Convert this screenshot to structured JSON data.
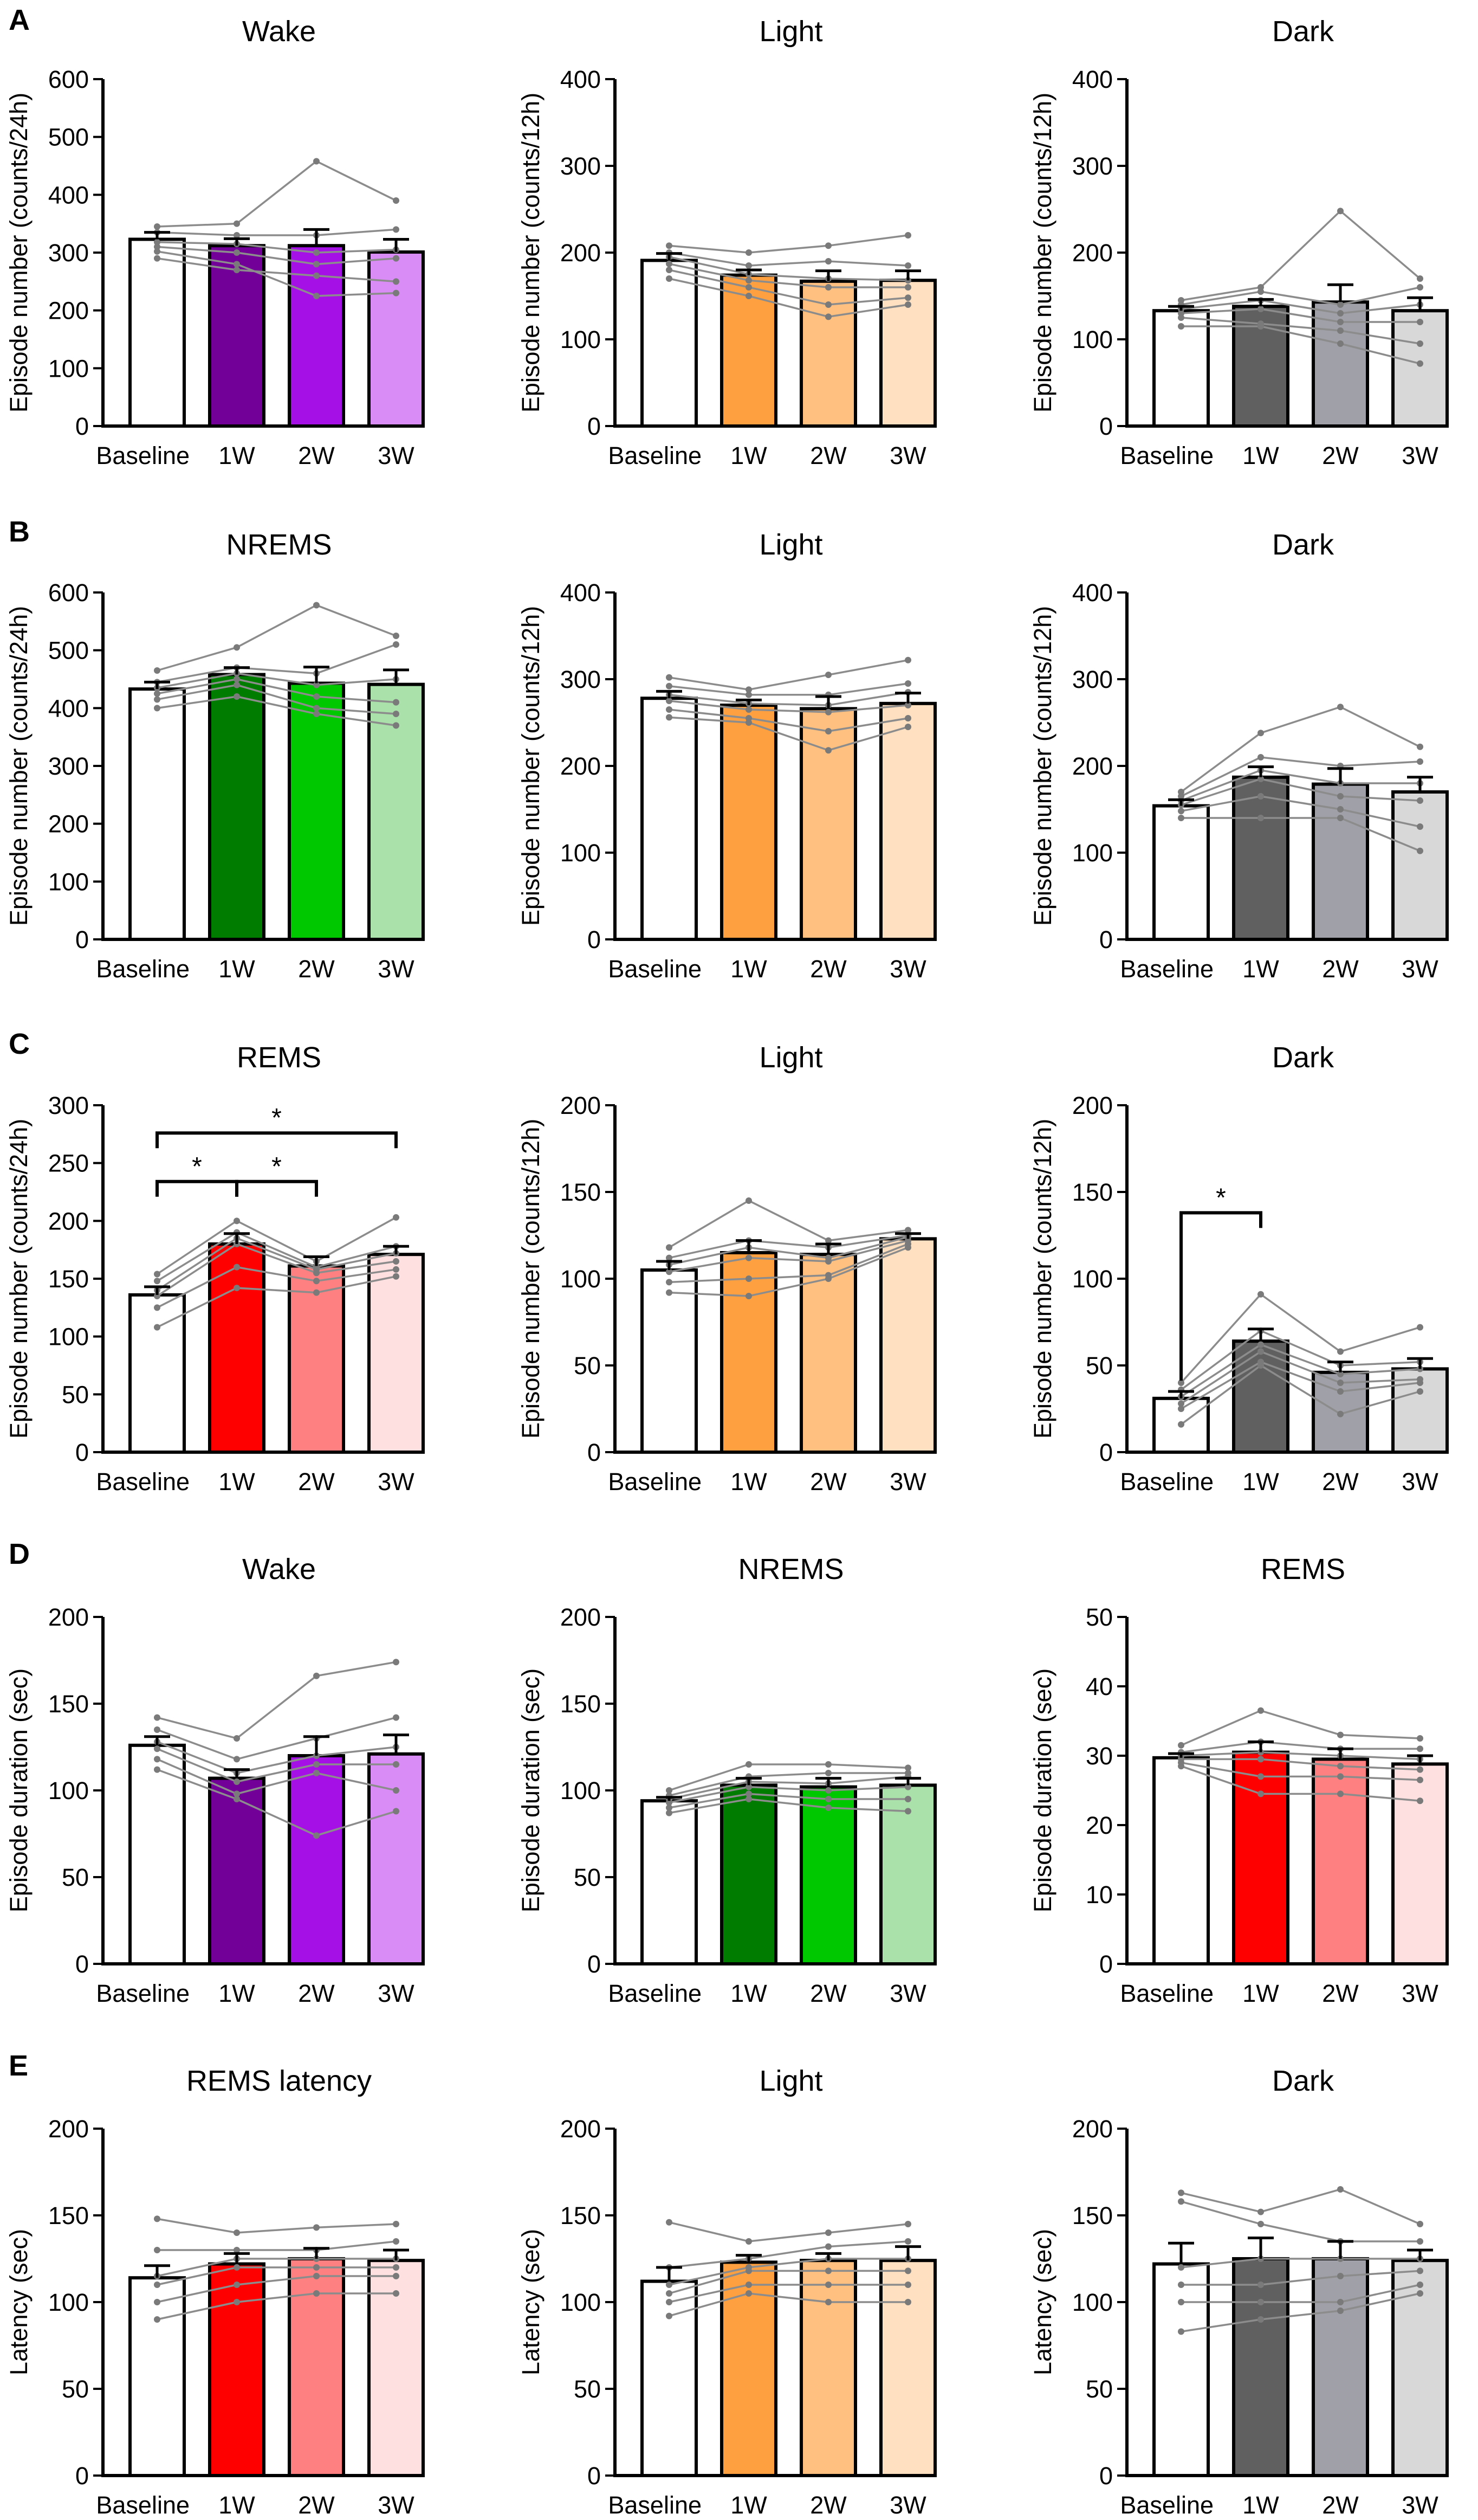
{
  "figure": {
    "rows": [
      {
        "label": "A",
        "panels": [
          0,
          1,
          2
        ]
      },
      {
        "label": "B",
        "panels": [
          3,
          4,
          5
        ]
      },
      {
        "label": "C",
        "panels": [
          6,
          7,
          8
        ]
      },
      {
        "label": "D",
        "panels": [
          9,
          10,
          11
        ]
      },
      {
        "label": "E",
        "panels": [
          12,
          13,
          14
        ]
      }
    ]
  },
  "chart_data": [
    {
      "type": "bar",
      "title": "Wake",
      "ylabel": "Episode number (counts/24h)",
      "xlabel": "",
      "categories": [
        "Baseline",
        "1W",
        "2W",
        "3W"
      ],
      "ylim": [
        0,
        600
      ],
      "yticks": [
        0,
        100,
        200,
        300,
        400,
        500,
        600
      ],
      "values": [
        323,
        312,
        312,
        301
      ],
      "errors": [
        12,
        12,
        28,
        22
      ],
      "colors": [
        "#ffffff",
        "#720098",
        "#a510e6",
        "#d98cf5"
      ],
      "individual": [
        [
          345,
          335,
          318,
          310,
          290,
          302
        ],
        [
          350,
          330,
          315,
          300,
          270,
          280
        ],
        [
          458,
          330,
          300,
          280,
          260,
          225
        ],
        [
          390,
          340,
          305,
          290,
          250,
          230
        ]
      ],
      "significance": []
    },
    {
      "type": "bar",
      "title": "Light",
      "ylabel": "Episode number (counts/12h)",
      "xlabel": "",
      "categories": [
        "Baseline",
        "1W",
        "2W",
        "3W"
      ],
      "ylim": [
        0,
        400
      ],
      "yticks": [
        0,
        100,
        200,
        300,
        400
      ],
      "values": [
        191,
        174,
        167,
        168
      ],
      "errors": [
        8,
        6,
        12,
        11
      ],
      "colors": [
        "#ffffff",
        "#ffa040",
        "#ffc080",
        "#ffe0c0"
      ],
      "individual": [
        [
          208,
          200,
          195,
          187,
          180,
          170
        ],
        [
          200,
          185,
          175,
          168,
          160,
          150
        ],
        [
          208,
          190,
          170,
          160,
          140,
          126
        ],
        [
          220,
          185,
          168,
          160,
          148,
          140
        ]
      ],
      "significance": []
    },
    {
      "type": "bar",
      "title": "Dark",
      "ylabel": "Episode number (counts/12h)",
      "xlabel": "",
      "categories": [
        "Baseline",
        "1W",
        "2W",
        "3W"
      ],
      "ylim": [
        0,
        400
      ],
      "yticks": [
        0,
        100,
        200,
        300,
        400
      ],
      "values": [
        133,
        138,
        143,
        133
      ],
      "errors": [
        5,
        8,
        20,
        15
      ],
      "colors": [
        "#ffffff",
        "#606060",
        "#a0a0a8",
        "#d8d8d8"
      ],
      "individual": [
        [
          145,
          140,
          135,
          130,
          125,
          115
        ],
        [
          160,
          155,
          145,
          135,
          118,
          115
        ],
        [
          248,
          140,
          130,
          120,
          110,
          95
        ],
        [
          170,
          160,
          140,
          120,
          95,
          72
        ]
      ],
      "significance": []
    },
    {
      "type": "bar",
      "title": "NREMS",
      "ylabel": "Episode number (counts/24h)",
      "xlabel": "",
      "categories": [
        "Baseline",
        "1W",
        "2W",
        "3W"
      ],
      "ylim": [
        0,
        600
      ],
      "yticks": [
        0,
        100,
        200,
        300,
        400,
        500,
        600
      ],
      "values": [
        433,
        458,
        443,
        441
      ],
      "errors": [
        12,
        12,
        28,
        25
      ],
      "colors": [
        "#ffffff",
        "#007d00",
        "#00c800",
        "#aae0aa"
      ],
      "individual": [
        [
          465,
          445,
          435,
          425,
          415,
          400
        ],
        [
          505,
          470,
          460,
          450,
          440,
          420
        ],
        [
          578,
          460,
          440,
          420,
          400,
          390
        ],
        [
          525,
          510,
          450,
          410,
          390,
          370
        ]
      ],
      "significance": []
    },
    {
      "type": "bar",
      "title": "Light",
      "ylabel": "Episode number (counts/12h)",
      "xlabel": "",
      "categories": [
        "Baseline",
        "1W",
        "2W",
        "3W"
      ],
      "ylim": [
        0,
        400
      ],
      "yticks": [
        0,
        100,
        200,
        300,
        400
      ],
      "values": [
        278,
        270,
        266,
        272
      ],
      "errors": [
        8,
        6,
        14,
        12
      ],
      "colors": [
        "#ffffff",
        "#ffa040",
        "#ffc080",
        "#ffe0c0"
      ],
      "individual": [
        [
          302,
          292,
          282,
          275,
          265,
          256
        ],
        [
          288,
          282,
          272,
          265,
          255,
          250
        ],
        [
          305,
          282,
          270,
          262,
          240,
          218
        ],
        [
          322,
          295,
          285,
          270,
          255,
          245
        ]
      ],
      "significance": []
    },
    {
      "type": "bar",
      "title": "Dark",
      "ylabel": "Episode number (counts/12h)",
      "xlabel": "",
      "categories": [
        "Baseline",
        "1W",
        "2W",
        "3W"
      ],
      "ylim": [
        0,
        400
      ],
      "yticks": [
        0,
        100,
        200,
        300,
        400
      ],
      "values": [
        154,
        187,
        179,
        170
      ],
      "errors": [
        7,
        12,
        18,
        17
      ],
      "colors": [
        "#ffffff",
        "#606060",
        "#a0a0a8",
        "#d8d8d8"
      ],
      "individual": [
        [
          170,
          165,
          160,
          155,
          148,
          140
        ],
        [
          238,
          210,
          195,
          185,
          165,
          140
        ],
        [
          268,
          200,
          180,
          165,
          150,
          140
        ],
        [
          222,
          205,
          180,
          160,
          130,
          102
        ]
      ],
      "significance": []
    },
    {
      "type": "bar",
      "title": "REMS",
      "ylabel": "Episode number (counts/24h)",
      "xlabel": "",
      "categories": [
        "Baseline",
        "1W",
        "2W",
        "3W"
      ],
      "ylim": [
        0,
        300
      ],
      "yticks": [
        0,
        50,
        100,
        150,
        200,
        250,
        300
      ],
      "values": [
        136,
        180,
        161,
        171
      ],
      "errors": [
        7,
        9,
        8,
        7
      ],
      "colors": [
        "#ffffff",
        "#ff0000",
        "#ff8080",
        "#ffe0e0"
      ],
      "individual": [
        [
          154,
          148,
          140,
          135,
          125,
          108
        ],
        [
          200,
          190,
          185,
          180,
          160,
          142
        ],
        [
          165,
          160,
          158,
          155,
          148,
          138
        ],
        [
          203,
          178,
          172,
          165,
          158,
          152
        ]
      ],
      "significance": [
        {
          "from": 0,
          "to": 1,
          "level": 1,
          "label": "*"
        },
        {
          "from": 1,
          "to": 2,
          "level": 1,
          "label": "*"
        },
        {
          "from": 0,
          "to": 3,
          "level": 2,
          "label": "*"
        }
      ]
    },
    {
      "type": "bar",
      "title": "Light",
      "ylabel": "Episode number (counts/12h)",
      "xlabel": "",
      "categories": [
        "Baseline",
        "1W",
        "2W",
        "3W"
      ],
      "ylim": [
        0,
        200
      ],
      "yticks": [
        0,
        50,
        100,
        150,
        200
      ],
      "values": [
        105,
        115,
        114,
        123
      ],
      "errors": [
        5,
        7,
        6,
        3
      ],
      "colors": [
        "#ffffff",
        "#ffa040",
        "#ffc080",
        "#ffe0c0"
      ],
      "individual": [
        [
          118,
          112,
          108,
          104,
          98,
          92
        ],
        [
          145,
          122,
          118,
          112,
          100,
          90
        ],
        [
          122,
          118,
          112,
          110,
          102,
          100
        ],
        [
          128,
          125,
          124,
          122,
          120,
          118
        ]
      ],
      "significance": []
    },
    {
      "type": "bar",
      "title": "Dark",
      "ylabel": "Episode number (counts/12h)",
      "xlabel": "",
      "categories": [
        "Baseline",
        "1W",
        "2W",
        "3W"
      ],
      "ylim": [
        0,
        200
      ],
      "yticks": [
        0,
        50,
        100,
        150,
        200
      ],
      "values": [
        31,
        64,
        46,
        48
      ],
      "errors": [
        4,
        7,
        6,
        6
      ],
      "colors": [
        "#ffffff",
        "#606060",
        "#a0a0a8",
        "#d8d8d8"
      ],
      "individual": [
        [
          40,
          36,
          32,
          28,
          25,
          16
        ],
        [
          91,
          70,
          62,
          58,
          52,
          50
        ],
        [
          58,
          50,
          45,
          40,
          35,
          22
        ],
        [
          72,
          52,
          48,
          42,
          40,
          35
        ]
      ],
      "significance": [
        {
          "from": 0,
          "to": 1,
          "level": 1,
          "label": "*"
        }
      ]
    },
    {
      "type": "bar",
      "title": "Wake",
      "ylabel": "Episode duration (sec)",
      "xlabel": "",
      "categories": [
        "Baseline",
        "1W",
        "2W",
        "3W"
      ],
      "ylim": [
        0,
        200
      ],
      "yticks": [
        0,
        50,
        100,
        150,
        200
      ],
      "values": [
        126,
        107,
        120,
        121
      ],
      "errors": [
        5,
        5,
        11,
        11
      ],
      "colors": [
        "#ffffff",
        "#720098",
        "#a510e6",
        "#d98cf5"
      ],
      "individual": [
        [
          142,
          135,
          128,
          124,
          118,
          112
        ],
        [
          130,
          118,
          110,
          105,
          98,
          95
        ],
        [
          166,
          130,
          120,
          115,
          110,
          74
        ],
        [
          174,
          142,
          125,
          115,
          100,
          88
        ]
      ],
      "significance": []
    },
    {
      "type": "bar",
      "title": "NREMS",
      "ylabel": "Episode duration (sec)",
      "xlabel": "",
      "categories": [
        "Baseline",
        "1W",
        "2W",
        "3W"
      ],
      "ylim": [
        0,
        200
      ],
      "yticks": [
        0,
        50,
        100,
        150,
        200
      ],
      "values": [
        94,
        103,
        102,
        103
      ],
      "errors": [
        2,
        4,
        5,
        4
      ],
      "colors": [
        "#ffffff",
        "#007d00",
        "#00c800",
        "#aae0aa"
      ],
      "individual": [
        [
          100,
          97,
          95,
          93,
          90,
          87
        ],
        [
          115,
          108,
          105,
          102,
          98,
          95
        ],
        [
          115,
          110,
          104,
          100,
          95,
          90
        ],
        [
          113,
          110,
          108,
          102,
          95,
          88
        ]
      ],
      "significance": []
    },
    {
      "type": "bar",
      "title": "REMS",
      "ylabel": "Episode duration (sec)",
      "xlabel": "",
      "categories": [
        "Baseline",
        "1W",
        "2W",
        "3W"
      ],
      "ylim": [
        0,
        50
      ],
      "yticks": [
        0,
        10,
        20,
        30,
        40,
        50
      ],
      "values": [
        29.7,
        30.5,
        29.5,
        28.8
      ],
      "errors": [
        0.6,
        1.5,
        1.5,
        1.2
      ],
      "colors": [
        "#ffffff",
        "#ff0000",
        "#ff8080",
        "#ffe0e0"
      ],
      "individual": [
        [
          31.5,
          30.5,
          30,
          29.5,
          29,
          28.5
        ],
        [
          36.5,
          32,
          30.5,
          29.5,
          27,
          24.5
        ],
        [
          33,
          31,
          30,
          28.5,
          27,
          24.5
        ],
        [
          32.5,
          31,
          29.5,
          28,
          26.5,
          23.5
        ]
      ],
      "significance": []
    },
    {
      "type": "bar",
      "title": "REMS latency",
      "ylabel": "Latency (sec)",
      "xlabel": "",
      "categories": [
        "Baseline",
        "1W",
        "2W",
        "3W"
      ],
      "ylim": [
        0,
        200
      ],
      "yticks": [
        0,
        50,
        100,
        150,
        200
      ],
      "values": [
        114,
        122,
        125,
        124
      ],
      "errors": [
        7,
        6,
        6,
        6
      ],
      "colors": [
        "#ffffff",
        "#ff0000",
        "#ff8080",
        "#ffe0e0"
      ],
      "individual": [
        [
          148,
          130,
          115,
          110,
          100,
          90
        ],
        [
          140,
          130,
          125,
          120,
          110,
          100
        ],
        [
          143,
          130,
          125,
          120,
          115,
          105
        ],
        [
          145,
          135,
          125,
          120,
          115,
          105
        ]
      ],
      "significance": []
    },
    {
      "type": "bar",
      "title": "Light",
      "ylabel": "Latency (sec)",
      "xlabel": "",
      "categories": [
        "Baseline",
        "1W",
        "2W",
        "3W"
      ],
      "ylim": [
        0,
        200
      ],
      "yticks": [
        0,
        50,
        100,
        150,
        200
      ],
      "values": [
        112,
        123,
        124,
        124
      ],
      "errors": [
        8,
        4,
        4,
        8
      ],
      "colors": [
        "#ffffff",
        "#ffa040",
        "#ffc080",
        "#ffe0c0"
      ],
      "individual": [
        [
          146,
          120,
          110,
          105,
          100,
          92
        ],
        [
          135,
          125,
          120,
          118,
          110,
          105
        ],
        [
          140,
          132,
          125,
          118,
          110,
          100
        ],
        [
          145,
          135,
          125,
          118,
          110,
          100
        ]
      ],
      "significance": []
    },
    {
      "type": "bar",
      "title": "Dark",
      "ylabel": "Latency (sec)",
      "xlabel": "",
      "categories": [
        "Baseline",
        "1W",
        "2W",
        "3W"
      ],
      "ylim": [
        0,
        200
      ],
      "yticks": [
        0,
        50,
        100,
        150,
        200
      ],
      "values": [
        122,
        125,
        125,
        124
      ],
      "errors": [
        12,
        12,
        10,
        6
      ],
      "colors": [
        "#ffffff",
        "#606060",
        "#a0a0a8",
        "#d8d8d8"
      ],
      "individual": [
        [
          163,
          158,
          120,
          110,
          100,
          83
        ],
        [
          152,
          145,
          125,
          110,
          100,
          90
        ],
        [
          165,
          135,
          125,
          115,
          100,
          95
        ],
        [
          145,
          135,
          125,
          118,
          110,
          105
        ]
      ],
      "significance": []
    }
  ]
}
